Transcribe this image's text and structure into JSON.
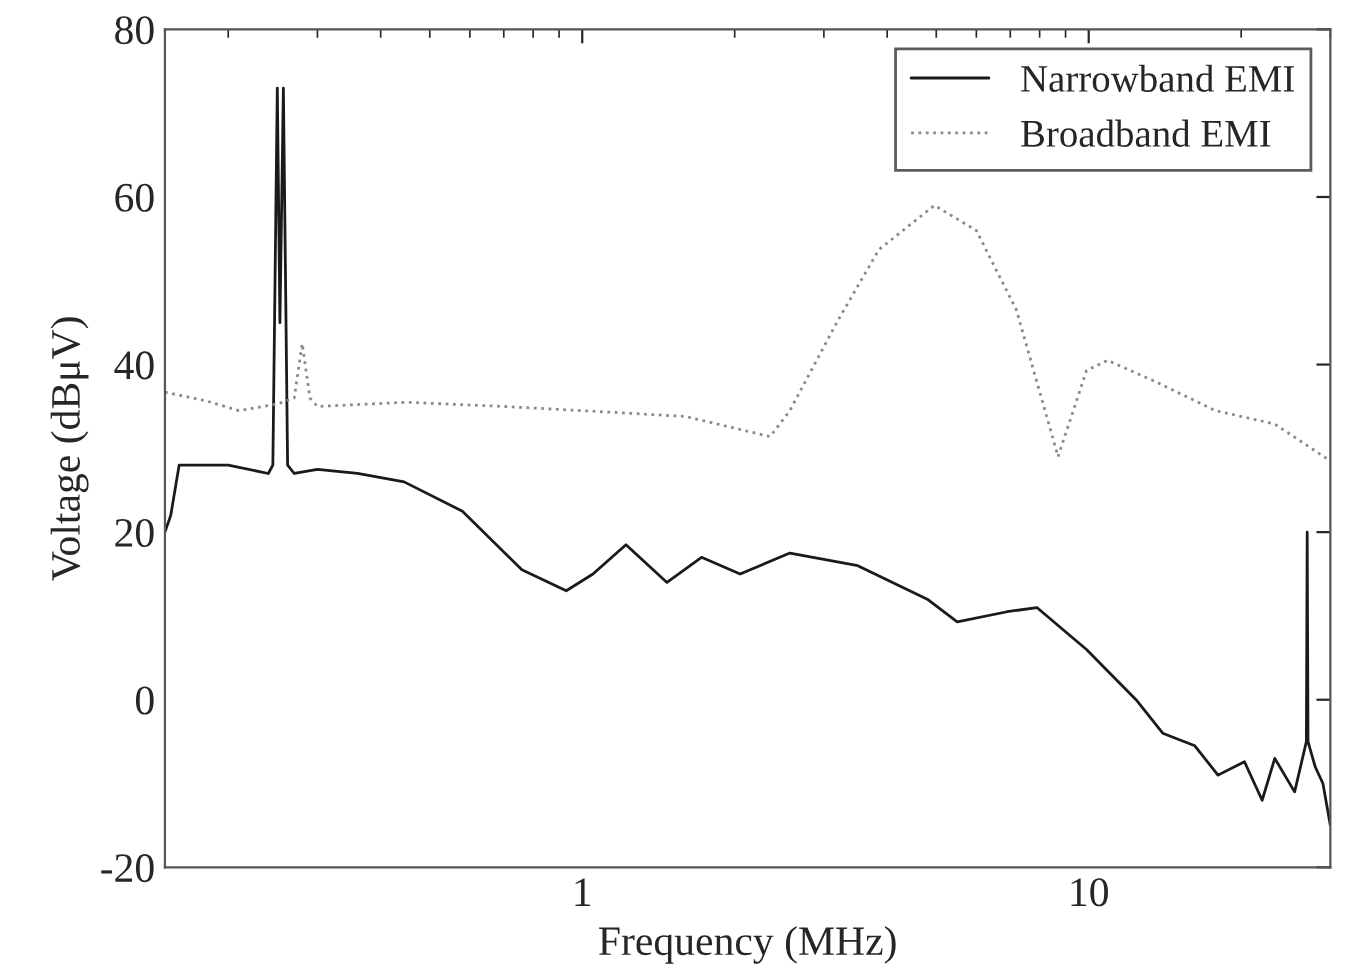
{
  "chart_data": {
    "type": "line",
    "xlabel": "Frequency (MHz)",
    "ylabel": "Voltage (dBμV)",
    "log": "x",
    "xlim": [
      0.15,
      30
    ],
    "xticks": [
      1,
      10
    ],
    "ylim": [
      -20,
      80
    ],
    "yticks": [
      -20,
      0,
      20,
      40,
      60,
      80
    ],
    "grid": false,
    "legend": "top right",
    "series": [
      {
        "name": "Narrowband EMI",
        "color": "#1a1a1a",
        "line_style": "solid",
        "x": [
          0.15,
          0.154,
          0.16,
          0.2,
          0.24,
          0.245,
          0.25,
          0.253,
          0.257,
          0.262,
          0.27,
          0.3,
          0.36,
          0.445,
          0.58,
          0.76,
          0.93,
          1.05,
          1.22,
          1.47,
          1.72,
          2.05,
          2.57,
          3.5,
          4.8,
          5.5,
          6.9,
          7.9,
          9.9,
          12.4,
          14.0,
          16.2,
          18.0,
          20.3,
          22.0,
          23.3,
          25.5,
          26.9,
          27.0,
          27.1,
          28.0,
          29.0,
          30.0
        ],
        "values": [
          20,
          22,
          28,
          28,
          27,
          28,
          73,
          45,
          73,
          28,
          27,
          27.5,
          27,
          26,
          22.5,
          15.5,
          13,
          15,
          18.5,
          14,
          17,
          15,
          17.5,
          16,
          12,
          9.3,
          10.5,
          11,
          6,
          0,
          -4,
          -5.5,
          -9,
          -7.4,
          -12,
          -7,
          -11,
          -5,
          20,
          -5,
          -8,
          -10,
          -15
        ]
      },
      {
        "name": "Broadband EMI",
        "color": "#8a8a8a",
        "line_style": "dotted",
        "x": [
          0.15,
          0.18,
          0.21,
          0.25,
          0.27,
          0.28,
          0.29,
          0.3,
          0.45,
          0.7,
          1.0,
          1.6,
          2.35,
          2.57,
          3.2,
          3.85,
          4.96,
          6.0,
          7.2,
          8.7,
          9.9,
          10.9,
          13.5,
          17.8,
          23.3,
          30.0
        ],
        "values": [
          36.7,
          35.7,
          34.5,
          35.3,
          36,
          42.5,
          36,
          35,
          35.5,
          35,
          34.5,
          33.8,
          31.4,
          34.5,
          45.3,
          53.7,
          59,
          56,
          46.5,
          29,
          39.3,
          40.5,
          38,
          34.5,
          32.9,
          28.5
        ]
      }
    ]
  }
}
